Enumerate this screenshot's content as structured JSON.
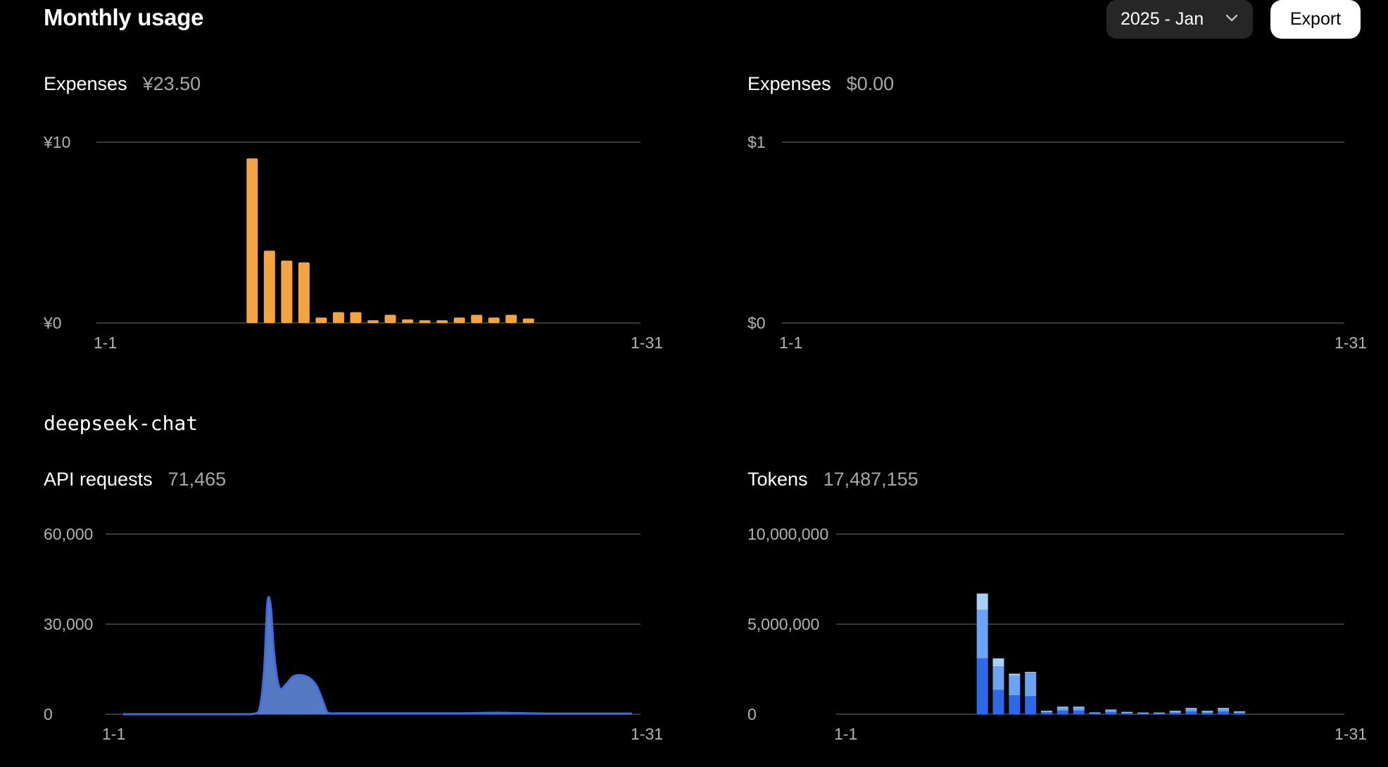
{
  "header": {
    "title": "Monthly usage",
    "month_select": "2025 - Jan",
    "export_label": "Export"
  },
  "colors": {
    "expense_bar": "#f3a341",
    "requests_fill": "#5b7fcf",
    "requests_line": "#3f6be0",
    "tokens_dark": "#2f67e6",
    "tokens_mid": "#6ca3f2",
    "tokens_light": "#a9d0fb"
  },
  "expenses_cny": {
    "label": "Expenses",
    "value": "¥23.50",
    "chart_data": {
      "type": "bar",
      "ylim": [
        0,
        10
      ],
      "y_ticks": [
        "¥10",
        "¥0"
      ],
      "x_ticks": [
        "1-1",
        "1-31"
      ],
      "x": [
        9,
        10,
        11,
        12,
        13,
        14,
        15,
        16,
        17,
        18,
        19,
        20,
        21,
        22,
        23,
        24,
        25
      ],
      "values": [
        9.1,
        4.0,
        3.45,
        3.35,
        0.3,
        0.6,
        0.6,
        0.15,
        0.45,
        0.2,
        0.15,
        0.15,
        0.3,
        0.45,
        0.3,
        0.45,
        0.25
      ]
    }
  },
  "expenses_usd": {
    "label": "Expenses",
    "value": "$0.00",
    "chart_data": {
      "type": "bar",
      "ylim": [
        0,
        1
      ],
      "y_ticks": [
        "$1",
        "$0"
      ],
      "x_ticks": [
        "1-1",
        "1-31"
      ],
      "x": [],
      "values": []
    }
  },
  "model": {
    "name": "deepseek-chat"
  },
  "api_requests": {
    "label": "API requests",
    "value": "71,465",
    "chart_data": {
      "type": "area",
      "ylim": [
        0,
        60000
      ],
      "y_ticks": [
        "60,000",
        "30,000",
        "0"
      ],
      "x_ticks": [
        "1-1",
        "1-31"
      ],
      "x": [
        1,
        2,
        3,
        4,
        5,
        6,
        6.5,
        7,
        7.5,
        8,
        8.5,
        9,
        9.3,
        9.5,
        9.7,
        9.9,
        10.2,
        10.6,
        11,
        11.5,
        12,
        12.4,
        12.8,
        13,
        13.2,
        13.6,
        14,
        15,
        16,
        17,
        18,
        19,
        20,
        21,
        22,
        23,
        24,
        25,
        26,
        27,
        28,
        29,
        30,
        31
      ],
      "values": [
        0,
        0,
        0,
        0,
        0,
        0,
        0,
        0,
        0,
        0,
        0,
        1000,
        14000,
        37000,
        36000,
        20000,
        9000,
        10000,
        12500,
        13000,
        12000,
        9500,
        4000,
        1000,
        300,
        300,
        300,
        300,
        300,
        300,
        300,
        300,
        300,
        300,
        400,
        500,
        400,
        300,
        200,
        200,
        200,
        200,
        200,
        200
      ]
    }
  },
  "tokens": {
    "label": "Tokens",
    "value": "17,487,155",
    "chart_data": {
      "type": "bar",
      "stacked": true,
      "ylim": [
        0,
        10000000
      ],
      "y_ticks": [
        "10,000,000",
        "5,000,000",
        "0"
      ],
      "x_ticks": [
        "1-1",
        "1-31"
      ],
      "x": [
        9,
        10,
        11,
        12,
        13,
        14,
        15,
        16,
        17,
        18,
        19,
        20,
        21,
        22,
        23,
        24,
        25
      ],
      "series": [
        {
          "values": [
            3100000,
            1350000,
            1050000,
            1000000,
            100000,
            200000,
            200000,
            50000,
            120000,
            60000,
            40000,
            40000,
            80000,
            150000,
            80000,
            150000,
            70000
          ]
        },
        {
          "values": [
            2700000,
            1300000,
            1100000,
            1300000,
            80000,
            170000,
            170000,
            40000,
            110000,
            60000,
            40000,
            40000,
            80000,
            150000,
            80000,
            150000,
            70000
          ]
        },
        {
          "values": [
            900000,
            450000,
            100000,
            50000,
            10000,
            50000,
            50000,
            10000,
            30000,
            10000,
            10000,
            10000,
            30000,
            50000,
            30000,
            50000,
            20000
          ]
        }
      ]
    }
  }
}
